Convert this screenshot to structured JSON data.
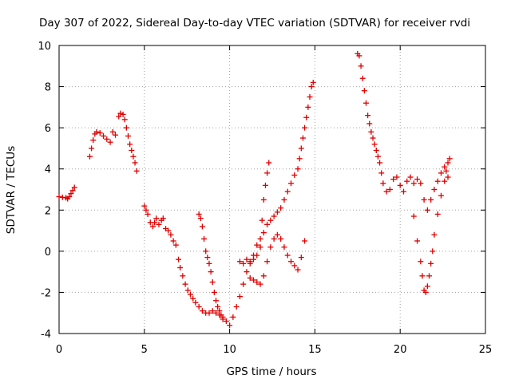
{
  "chart_data": {
    "type": "scatter",
    "title": "Day 307 of 2022, Sidereal Day-to-day VTEC variation (SDTVAR) for receiver rvdi",
    "xlabel": "GPS time / hours",
    "ylabel": "SDTVAR / TECUs",
    "xlim": [
      0,
      25
    ],
    "ylim": [
      -4,
      10
    ],
    "xticks": [
      0,
      5,
      10,
      15,
      20,
      25
    ],
    "yticks": [
      -4,
      -2,
      0,
      2,
      4,
      6,
      8,
      10
    ],
    "grid": true,
    "marker": "+",
    "color": "#e00000",
    "series": [
      {
        "x": [
          0.0,
          0.2,
          0.4,
          0.5,
          0.6,
          0.7,
          0.8,
          0.9
        ],
        "y": [
          2.65,
          2.62,
          2.6,
          2.55,
          2.65,
          2.8,
          2.95,
          3.1
        ]
      },
      {
        "x": [
          1.8,
          1.9,
          2.0,
          2.1,
          2.2,
          2.4,
          2.6,
          2.8,
          3.0
        ],
        "y": [
          4.6,
          5.0,
          5.4,
          5.7,
          5.8,
          5.75,
          5.6,
          5.45,
          5.3
        ]
      },
      {
        "x": [
          3.15,
          3.3
        ],
        "y": [
          5.8,
          5.65
        ]
      },
      {
        "x": [
          3.5,
          3.6,
          3.75,
          3.85,
          3.95,
          4.05,
          4.15,
          4.25,
          4.35,
          4.45,
          4.55
        ],
        "y": [
          6.55,
          6.7,
          6.65,
          6.4,
          6.0,
          5.6,
          5.2,
          4.9,
          4.6,
          4.3,
          3.9
        ]
      },
      {
        "x": [
          5.0,
          5.1,
          5.2,
          5.35,
          5.5,
          5.6,
          5.7,
          5.85,
          6.0,
          6.1,
          6.25,
          6.4,
          6.55,
          6.7,
          6.85,
          7.0,
          7.1,
          7.25,
          7.4,
          7.55,
          7.7,
          7.85,
          8.0,
          8.2,
          8.4,
          8.6,
          8.8,
          9.0,
          9.2,
          9.4,
          9.6,
          9.8,
          10.0,
          10.2,
          10.4,
          10.6,
          10.8,
          11.0,
          11.2,
          11.4,
          11.6,
          11.8,
          12.0,
          12.2,
          12.4,
          12.6,
          12.8,
          13.0,
          13.2,
          13.4,
          13.6,
          13.8,
          14.0,
          14.1,
          14.2,
          14.3,
          14.4,
          14.5,
          14.6,
          14.7,
          14.8,
          14.9
        ],
        "y": [
          2.2,
          2.0,
          1.8,
          1.4,
          1.2,
          1.4,
          1.6,
          1.3,
          1.5,
          1.6,
          1.1,
          1.0,
          0.8,
          0.5,
          0.3,
          -0.4,
          -0.8,
          -1.2,
          -1.6,
          -1.9,
          -2.1,
          -2.3,
          -2.5,
          -2.7,
          -2.9,
          -3.0,
          -3.0,
          -2.9,
          -3.0,
          -3.1,
          -3.2,
          -3.4,
          -3.6,
          -3.2,
          -2.7,
          -2.2,
          -1.6,
          -1.0,
          -0.5,
          -0.2,
          0.3,
          0.6,
          0.9,
          1.3,
          1.5,
          1.7,
          1.9,
          2.1,
          2.5,
          2.9,
          3.3,
          3.7,
          4.0,
          4.5,
          5.0,
          5.5,
          6.0,
          6.5,
          7.0,
          7.5,
          8.0,
          8.2
        ]
      },
      {
        "x": [
          8.2,
          8.3,
          8.4,
          8.5,
          8.6,
          8.7,
          8.8,
          8.9,
          9.0,
          9.1,
          9.2,
          9.3,
          9.4,
          9.5,
          9.6
        ],
        "y": [
          1.8,
          1.6,
          1.2,
          0.6,
          0.0,
          -0.3,
          -0.6,
          -1.0,
          -1.5,
          -2.0,
          -2.4,
          -2.7,
          -2.9,
          -3.1,
          -3.3
        ]
      },
      {
        "x": [
          10.6,
          10.8,
          11.0,
          11.2,
          11.4,
          11.6,
          11.8,
          11.9,
          12.0,
          12.1,
          12.2,
          12.3
        ],
        "y": [
          -0.5,
          -0.6,
          -0.4,
          -0.6,
          -0.4,
          -0.2,
          0.2,
          1.5,
          2.5,
          3.2,
          3.8,
          4.3
        ]
      },
      {
        "x": [
          11.2,
          11.4,
          11.6,
          11.8,
          12.0,
          12.2,
          12.4,
          12.6,
          12.8,
          13.0,
          13.2,
          13.4,
          13.6,
          13.8,
          14.0,
          14.2,
          14.4
        ],
        "y": [
          -1.3,
          -1.4,
          -1.5,
          -1.6,
          -1.2,
          -0.5,
          0.2,
          0.6,
          0.8,
          0.6,
          0.2,
          -0.2,
          -0.5,
          -0.7,
          -0.9,
          -0.3,
          0.5
        ]
      },
      {
        "x": [
          17.5,
          17.6,
          17.7,
          17.8,
          17.9,
          18.0,
          18.1,
          18.2,
          18.3,
          18.4,
          18.5,
          18.6,
          18.7,
          18.8,
          18.9,
          19.0,
          19.2,
          19.4,
          19.6,
          19.8,
          20.0,
          20.2,
          20.4,
          20.6,
          20.8,
          21.0,
          21.2,
          21.4,
          21.6,
          21.8,
          22.0,
          22.2,
          22.4,
          22.6,
          22.8
        ],
        "y": [
          9.6,
          9.5,
          9.0,
          8.4,
          7.8,
          7.2,
          6.6,
          6.2,
          5.8,
          5.5,
          5.2,
          4.9,
          4.6,
          4.3,
          3.8,
          3.3,
          2.9,
          3.0,
          3.5,
          3.6,
          3.2,
          2.9,
          3.4,
          3.6,
          3.3,
          3.5,
          3.3,
          2.5,
          2.0,
          2.5,
          3.0,
          3.4,
          3.8,
          4.1,
          3.6
        ]
      },
      {
        "x": [
          20.8,
          21.0,
          21.2,
          21.3,
          21.4,
          21.5,
          21.6,
          21.7,
          21.8,
          21.9,
          22.0,
          22.2,
          22.4,
          22.6,
          22.7,
          22.8,
          22.9
        ],
        "y": [
          1.7,
          0.5,
          -0.5,
          -1.2,
          -1.9,
          -2.0,
          -1.7,
          -1.2,
          -0.6,
          0.0,
          0.8,
          1.8,
          2.7,
          3.4,
          3.9,
          4.3,
          4.5
        ]
      }
    ]
  }
}
